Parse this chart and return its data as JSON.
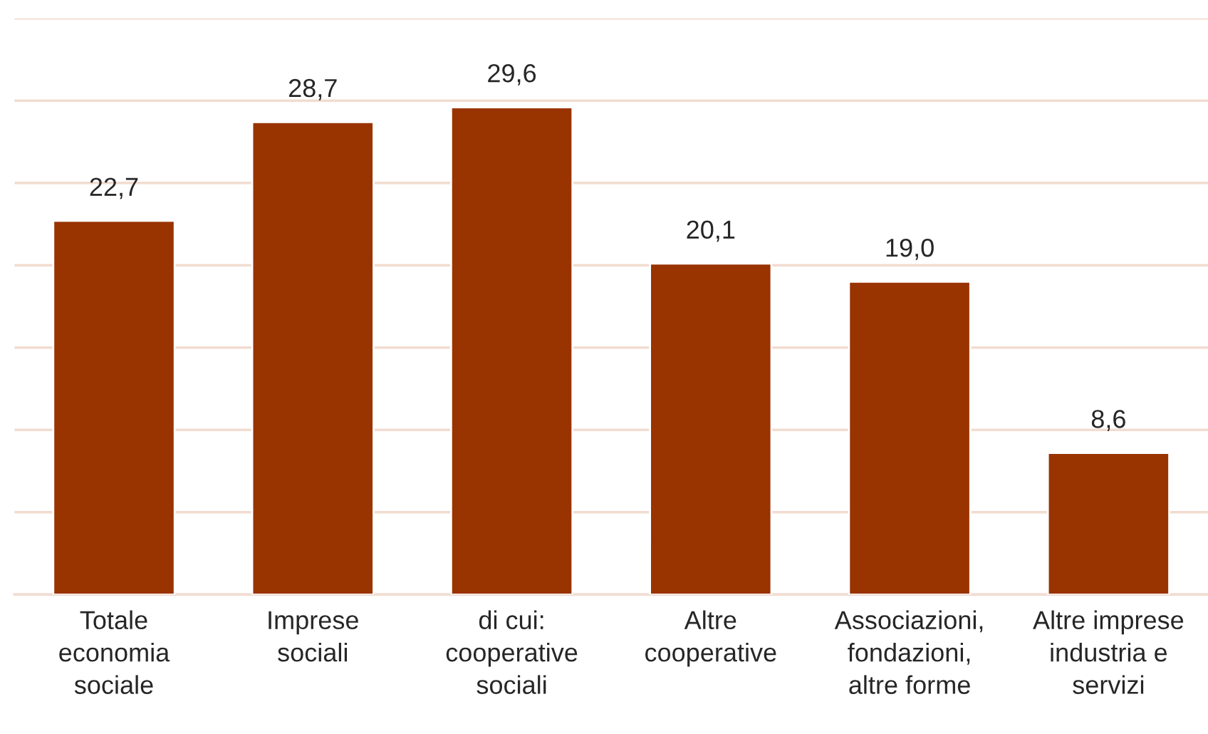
{
  "chart_data": {
    "type": "bar",
    "categories": [
      "Totale\neconomia\nsociale",
      "Imprese\nsociali",
      "di cui:\ncooperative\nsociali",
      "Altre\ncooperative",
      "Associazioni,\nfondazioni,\naltre forme",
      "Altre imprese\nindustria e\nservizi"
    ],
    "values": [
      22.7,
      28.7,
      29.6,
      20.1,
      19.0,
      8.6
    ],
    "value_labels": [
      "22,7",
      "28,7",
      "29,6",
      "20,1",
      "19,0",
      "8,6"
    ],
    "color": "#993300",
    "ylim": [
      0,
      35
    ],
    "yticks": [
      {
        "value": 0,
        "label": null
      },
      {
        "value": 5,
        "label": null
      },
      {
        "value": 10,
        "label": null
      },
      {
        "value": 15,
        "label": null
      },
      {
        "value": 20,
        "label": null
      },
      {
        "value": 25,
        "label": null
      },
      {
        "value": 30,
        "label": null
      },
      {
        "value": 35,
        "label": null
      }
    ],
    "grid": "y",
    "tick_labels": "x"
  }
}
